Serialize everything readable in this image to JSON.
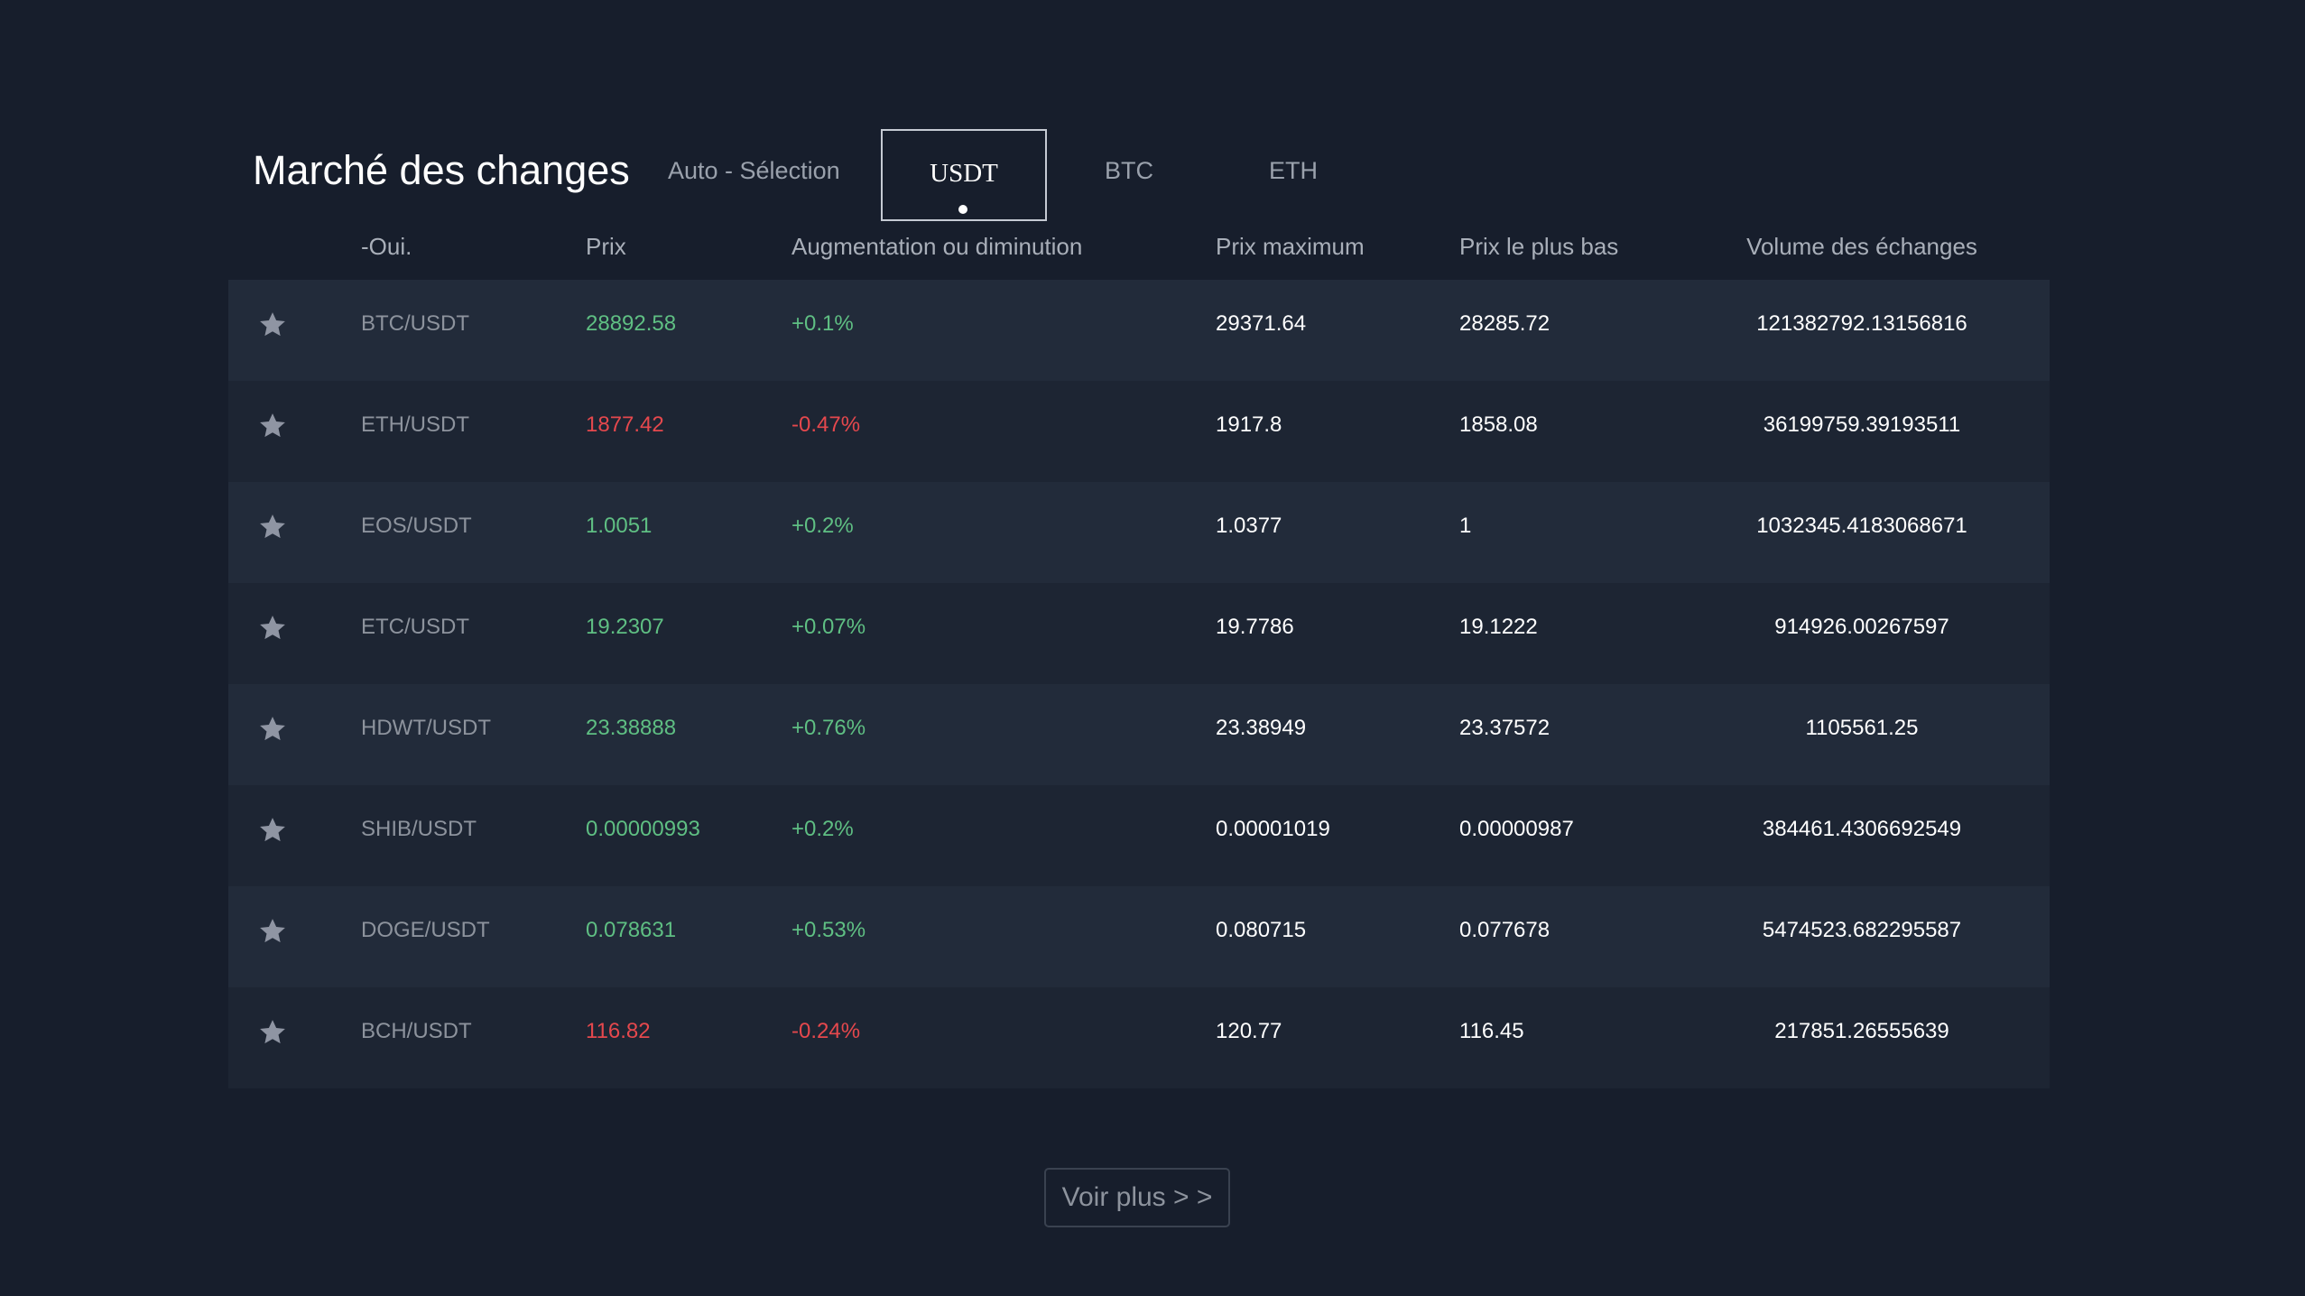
{
  "header": {
    "title": "Marché des changes",
    "tabs": [
      {
        "label": "Auto - Sélection",
        "active": false
      },
      {
        "label": "USDT",
        "active": true
      },
      {
        "label": "BTC",
        "active": false
      },
      {
        "label": "ETH",
        "active": false
      }
    ]
  },
  "table": {
    "columns": {
      "pair": "-Oui.",
      "price": "Prix",
      "change": "Augmentation ou diminution",
      "high": "Prix maximum",
      "low": "Prix le plus bas",
      "volume": "Volume des échanges"
    },
    "rows": [
      {
        "pair": "BTC/USDT",
        "price": "28892.58",
        "change": "+0.1%",
        "high": "29371.64",
        "low": "28285.72",
        "volume": "121382792.13156816",
        "trend": "up"
      },
      {
        "pair": "ETH/USDT",
        "price": "1877.42",
        "change": "-0.47%",
        "high": "1917.8",
        "low": "1858.08",
        "volume": "36199759.39193511",
        "trend": "down"
      },
      {
        "pair": "EOS/USDT",
        "price": "1.0051",
        "change": "+0.2%",
        "high": "1.0377",
        "low": "1",
        "volume": "1032345.4183068671",
        "trend": "up"
      },
      {
        "pair": "ETC/USDT",
        "price": "19.2307",
        "change": "+0.07%",
        "high": "19.7786",
        "low": "19.1222",
        "volume": "914926.00267597",
        "trend": "up"
      },
      {
        "pair": "HDWT/USDT",
        "price": "23.38888",
        "change": "+0.76%",
        "high": "23.38949",
        "low": "23.37572",
        "volume": "1105561.25",
        "trend": "up"
      },
      {
        "pair": "SHIB/USDT",
        "price": "0.00000993",
        "change": "+0.2%",
        "high": "0.00001019",
        "low": "0.00000987",
        "volume": "384461.4306692549",
        "trend": "up"
      },
      {
        "pair": "DOGE/USDT",
        "price": "0.078631",
        "change": "+0.53%",
        "high": "0.080715",
        "low": "0.077678",
        "volume": "5474523.682295587",
        "trend": "up"
      },
      {
        "pair": "BCH/USDT",
        "price": "116.82",
        "change": "-0.24%",
        "high": "120.77",
        "low": "116.45",
        "volume": "217851.26555639",
        "trend": "down"
      }
    ]
  },
  "more_button": {
    "label": "Voir plus > >"
  },
  "icons": {
    "favorite": "star-icon"
  },
  "colors": {
    "background": "#171e2c",
    "up": "#5fbf83",
    "down": "#e5484d",
    "star": "#8f95a3"
  }
}
